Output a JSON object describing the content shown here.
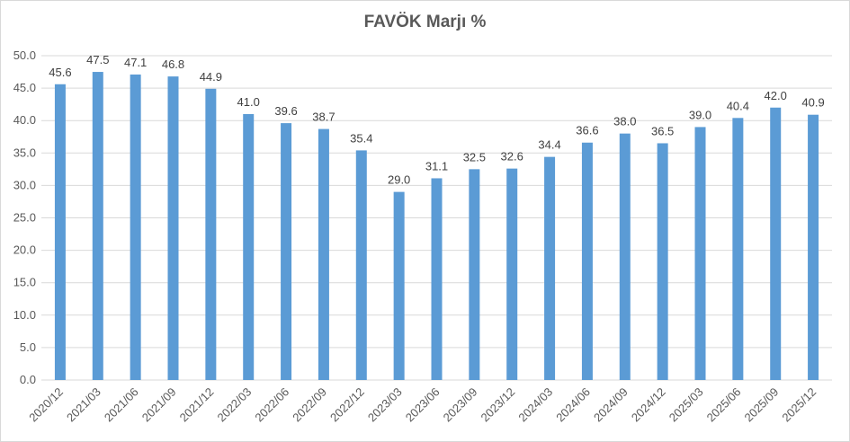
{
  "chart_data": {
    "type": "bar",
    "title": "FAVÖK Marjı %",
    "xlabel": "",
    "ylabel": "",
    "ylim": [
      0,
      50
    ],
    "yticks": [
      "0.0",
      "5.0",
      "10.0",
      "15.0",
      "20.0",
      "25.0",
      "30.0",
      "35.0",
      "40.0",
      "45.0",
      "50.0"
    ],
    "grid": true,
    "legend": "none",
    "bar_color": "#5b9bd5",
    "categories": [
      "2020/12",
      "2021/03",
      "2021/06",
      "2021/09",
      "2021/12",
      "2022/03",
      "2022/06",
      "2022/09",
      "2022/12",
      "2023/03",
      "2023/06",
      "2023/09",
      "2023/12",
      "2024/03",
      "2024/06",
      "2024/09",
      "2024/12",
      "2025/03",
      "2025/06",
      "2025/09",
      "2025/12"
    ],
    "values": [
      45.6,
      47.5,
      47.1,
      46.8,
      44.9,
      41.0,
      39.6,
      38.7,
      35.4,
      29.0,
      31.1,
      32.5,
      32.6,
      34.4,
      36.6,
      38.0,
      36.5,
      39.0,
      40.4,
      42.0,
      40.9
    ],
    "data_labels": [
      "45.6",
      "47.5",
      "47.1",
      "46.8",
      "44.9",
      "41.0",
      "39.6",
      "38.7",
      "35.4",
      "29.0",
      "31.1",
      "32.5",
      "32.6",
      "34.4",
      "36.6",
      "38.0",
      "36.5",
      "39.0",
      "40.4",
      "42.0",
      "40.9"
    ]
  }
}
